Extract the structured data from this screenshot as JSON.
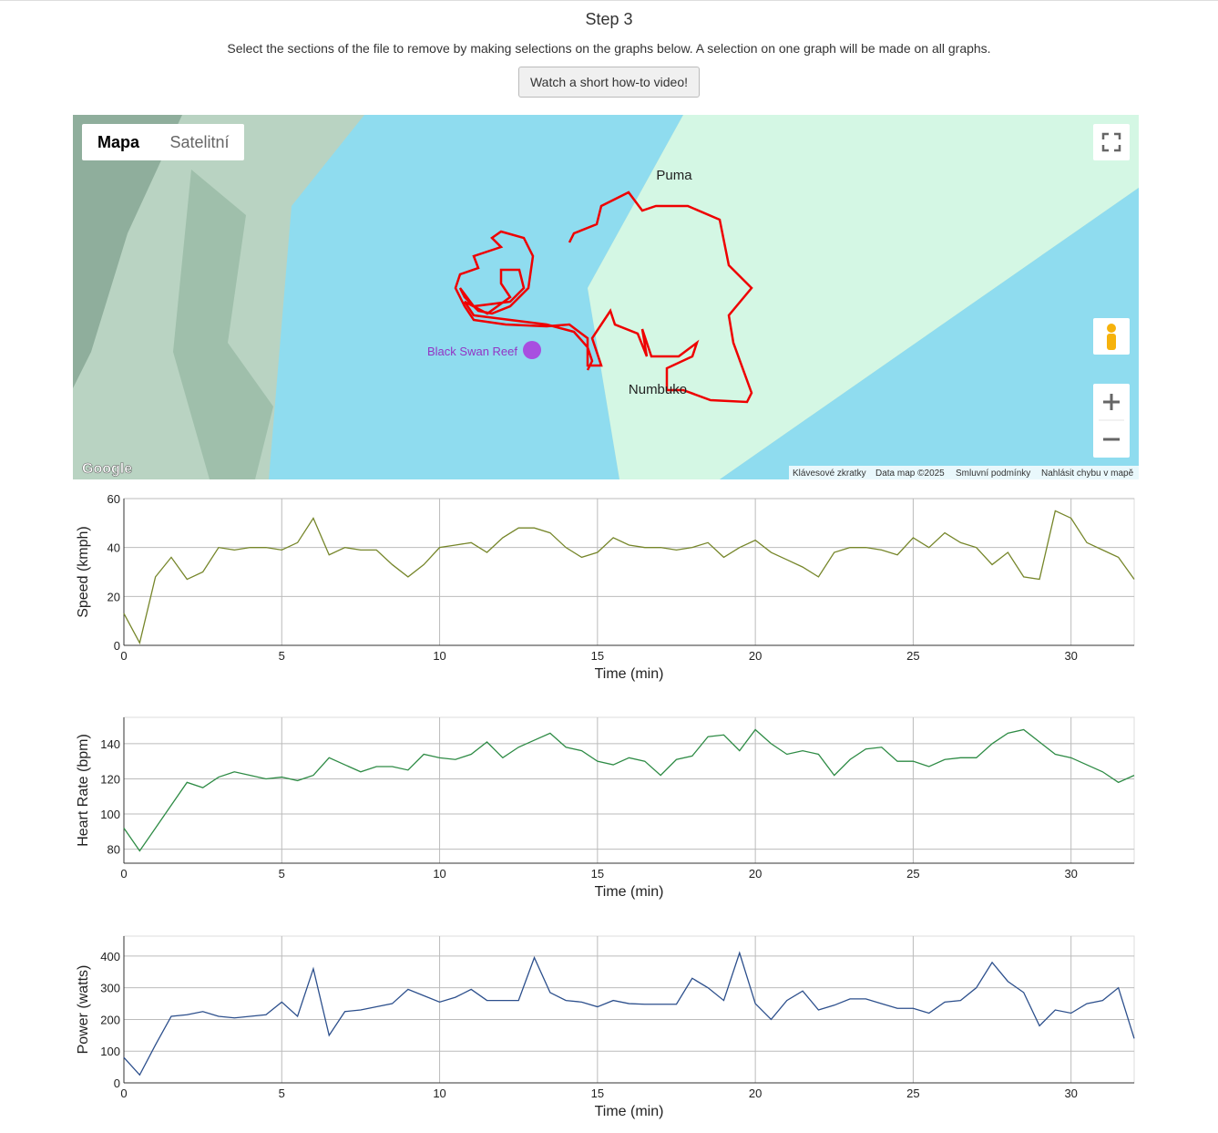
{
  "header": {
    "title": "Step 3",
    "instructions": "Select the sections of the file to remove by making selections on the graphs below. A selection on one graph will be made on all graphs.",
    "button": "Watch a short how-to video!"
  },
  "map": {
    "map_types": [
      "Mapa",
      "Satelitní"
    ],
    "labels": [
      "Puma",
      "Numbuko",
      "Black Swan Reef"
    ],
    "logo": "Google",
    "attribution": [
      "Klávesové zkratky",
      "Data map ©2025",
      "Smluvní podmínky",
      "Nahlásit chybu v mapě"
    ]
  },
  "chart_data": [
    {
      "type": "line",
      "ylabel": "Speed (kmph)",
      "xlabel": "Time (min)",
      "color": "#76862a",
      "grid": true,
      "x": [
        0,
        0.5,
        1,
        1.5,
        2,
        2.5,
        3,
        3.5,
        4,
        4.5,
        5,
        5.5,
        6,
        6.5,
        7,
        7.5,
        8,
        8.5,
        9,
        9.5,
        10,
        10.5,
        11,
        11.5,
        12,
        12.5,
        13,
        13.5,
        14,
        14.5,
        15,
        15.5,
        16,
        16.5,
        17,
        17.5,
        18,
        18.5,
        19,
        19.5,
        20,
        20.5,
        21,
        21.5,
        22,
        22.5,
        23,
        23.5,
        24,
        24.5,
        25,
        25.5,
        26,
        26.5,
        27,
        27.5,
        28,
        28.5,
        29,
        29.5,
        30,
        30.5,
        31,
        31.5,
        32
      ],
      "values": [
        13,
        1,
        28,
        36,
        27,
        30,
        40,
        39,
        40,
        40,
        39,
        42,
        52,
        37,
        40,
        39,
        39,
        33,
        28,
        33,
        40,
        41,
        42,
        38,
        44,
        48,
        48,
        46,
        40,
        36,
        38,
        44,
        41,
        40,
        40,
        39,
        40,
        42,
        36,
        40,
        43,
        38,
        35,
        32,
        28,
        38,
        40,
        40,
        39,
        37,
        44,
        40,
        46,
        42,
        40,
        33,
        38,
        28,
        27,
        55,
        52,
        42,
        39,
        36,
        27
      ],
      "xlim": [
        0,
        32
      ],
      "xticks": [
        0,
        5,
        10,
        15,
        20,
        25,
        30
      ],
      "ylim": [
        0,
        60
      ],
      "yticks": [
        0,
        20,
        40,
        60
      ]
    },
    {
      "type": "line",
      "ylabel": "Heart Rate (bpm)",
      "xlabel": "Time (min)",
      "color": "#2e8b45",
      "grid": true,
      "x": [
        0,
        0.5,
        1,
        1.5,
        2,
        2.5,
        3,
        3.5,
        4,
        4.5,
        5,
        5.5,
        6,
        6.5,
        7,
        7.5,
        8,
        8.5,
        9,
        9.5,
        10,
        10.5,
        11,
        11.5,
        12,
        12.5,
        13,
        13.5,
        14,
        14.5,
        15,
        15.5,
        16,
        16.5,
        17,
        17.5,
        18,
        18.5,
        19,
        19.5,
        20,
        20.5,
        21,
        21.5,
        22,
        22.5,
        23,
        23.5,
        24,
        24.5,
        25,
        25.5,
        26,
        26.5,
        27,
        27.5,
        28,
        28.5,
        29,
        29.5,
        30,
        30.5,
        31,
        31.5,
        32
      ],
      "values": [
        92,
        79,
        92,
        105,
        118,
        115,
        121,
        124,
        122,
        120,
        121,
        119,
        122,
        132,
        128,
        124,
        127,
        127,
        125,
        134,
        132,
        131,
        134,
        141,
        132,
        138,
        142,
        146,
        138,
        136,
        130,
        128,
        132,
        130,
        122,
        131,
        133,
        144,
        145,
        136,
        148,
        140,
        134,
        136,
        134,
        122,
        131,
        137,
        138,
        130,
        130,
        127,
        131,
        132,
        132,
        140,
        146,
        148,
        141,
        134,
        132,
        128,
        124,
        118,
        122
      ],
      "xlim": [
        0,
        32
      ],
      "xticks": [
        0,
        5,
        10,
        15,
        20,
        25,
        30
      ],
      "ylim": [
        72,
        155
      ],
      "yticks": [
        80,
        100,
        120,
        140
      ]
    },
    {
      "type": "line",
      "ylabel": "Power (watts)",
      "xlabel": "Time (min)",
      "color": "#2c4f8c",
      "grid": true,
      "x": [
        0,
        0.5,
        1,
        1.5,
        2,
        2.5,
        3,
        3.5,
        4,
        4.5,
        5,
        5.5,
        6,
        6.5,
        7,
        7.5,
        8,
        8.5,
        9,
        9.5,
        10,
        10.5,
        11,
        11.5,
        12,
        12.5,
        13,
        13.5,
        14,
        14.5,
        15,
        15.5,
        16,
        16.5,
        17,
        17.5,
        18,
        18.5,
        19,
        19.5,
        20,
        20.5,
        21,
        21.5,
        22,
        22.5,
        23,
        23.5,
        24,
        24.5,
        25,
        25.5,
        26,
        26.5,
        27,
        27.5,
        28,
        28.5,
        29,
        29.5,
        30,
        30.5,
        31,
        31.5,
        32
      ],
      "values": [
        80,
        25,
        120,
        210,
        215,
        225,
        210,
        205,
        210,
        215,
        255,
        210,
        360,
        150,
        225,
        230,
        240,
        250,
        295,
        275,
        255,
        270,
        295,
        260,
        260,
        260,
        395,
        285,
        260,
        255,
        240,
        260,
        250,
        248,
        248,
        248,
        330,
        300,
        260,
        410,
        250,
        200,
        260,
        290,
        230,
        245,
        265,
        265,
        250,
        235,
        235,
        220,
        255,
        260,
        300,
        380,
        320,
        285,
        180,
        230,
        220,
        250,
        260,
        300,
        140
      ],
      "xlim": [
        0,
        32
      ],
      "xticks": [
        0,
        5,
        10,
        15,
        20,
        25,
        30
      ],
      "ylim": [
        0,
        463
      ],
      "yticks": [
        0,
        100,
        200,
        300,
        400
      ]
    }
  ]
}
